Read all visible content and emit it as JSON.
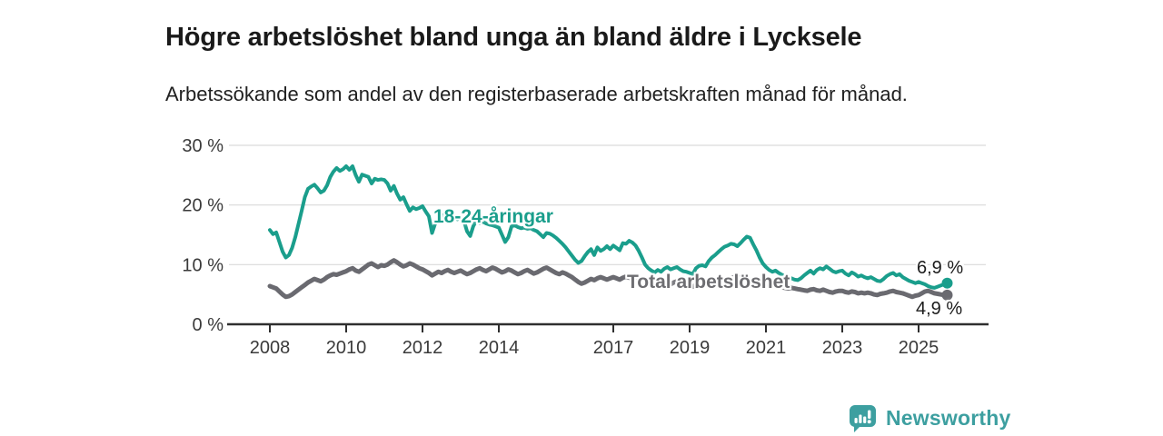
{
  "header": {
    "title": "Högre arbetslöshet bland unga än bland äldre i Lycksele",
    "subtitle": "Arbetssökande som andel av den registerbaserade arbetskraften månad för månad."
  },
  "colors": {
    "accent_teal": "#1a9e8c",
    "line_gray": "#6a6a70",
    "label_gray": "#6e6e72",
    "axis": "#2f2f2f",
    "axis_text": "#3a3a3a",
    "grid": "#d9d9d9",
    "title_text": "#1a1a1a",
    "brand_teal": "#3d9fa0"
  },
  "footer": {
    "brand": "Newsworthy",
    "brand_icon": "bar-chart-speech-bubble-icon"
  },
  "chart_data": {
    "type": "line",
    "title": "Högre arbetslöshet bland unga än bland äldre i Lycksele",
    "subtitle": "Arbetssökande som andel av den registerbaserade arbetskraften månad för månad.",
    "x_start_year": 2008,
    "x_step": "month",
    "x_end": "2025-10",
    "x_ticks": [
      2008,
      2010,
      2012,
      2014,
      2017,
      2019,
      2021,
      2023,
      2025
    ],
    "y_ticks": [
      {
        "value": 0,
        "label": "0 %"
      },
      {
        "value": 10,
        "label": "10 %"
      },
      {
        "value": 20,
        "label": "20 %"
      },
      {
        "value": 30,
        "label": "30 %"
      }
    ],
    "ylim": [
      0,
      31
    ],
    "grid": "horizontal",
    "legend_position": "inline-labels",
    "series": [
      {
        "name": "18-24-åringar",
        "color": "#1a9e8c",
        "end_label": "6,9 %",
        "end_value": 6.9,
        "values": [
          15.8,
          15.1,
          15.4,
          13.8,
          12.2,
          11.2,
          11.6,
          12.8,
          14.6,
          16.8,
          19.0,
          21.3,
          22.7,
          23.1,
          23.4,
          22.8,
          22.1,
          22.4,
          23.3,
          24.7,
          25.6,
          26.2,
          25.7,
          26.0,
          26.5,
          25.9,
          26.5,
          25.0,
          23.9,
          25.1,
          24.9,
          24.7,
          23.6,
          24.4,
          24.2,
          24.3,
          24.2,
          23.6,
          22.4,
          23.2,
          21.9,
          20.9,
          21.3,
          20.1,
          19.0,
          19.6,
          19.3,
          19.5,
          19.8,
          18.9,
          18.1,
          15.3,
          16.9,
          17.8,
          18.2,
          18.4,
          18.0,
          17.7,
          18.2,
          17.6,
          18.0,
          17.4,
          15.6,
          14.8,
          16.5,
          17.4,
          17.0,
          17.2,
          16.9,
          16.7,
          16.6,
          16.4,
          16.2,
          15.0,
          13.8,
          14.6,
          16.4,
          16.6,
          16.3,
          16.1,
          16.2,
          16.0,
          16.1,
          15.8,
          15.6,
          15.1,
          14.6,
          15.3,
          15.2,
          14.9,
          14.5,
          14.0,
          13.5,
          12.9,
          12.2,
          11.5,
          10.8,
          10.3,
          10.6,
          11.4,
          12.1,
          12.6,
          11.6,
          12.9,
          12.3,
          12.6,
          13.1,
          12.6,
          13.2,
          12.8,
          12.4,
          13.6,
          13.5,
          14.0,
          13.7,
          13.2,
          12.3,
          11.2,
          10.0,
          9.4,
          9.0,
          8.7,
          9.1,
          8.8,
          9.3,
          9.6,
          9.2,
          9.4,
          9.6,
          9.2,
          8.9,
          8.8,
          8.6,
          8.4,
          9.4,
          9.8,
          9.9,
          9.7,
          10.6,
          11.2,
          11.6,
          12.1,
          12.6,
          13.0,
          13.2,
          13.5,
          13.4,
          13.1,
          13.6,
          14.2,
          14.7,
          14.5,
          13.4,
          12.4,
          11.2,
          10.2,
          9.6,
          9.1,
          8.8,
          9.0,
          8.6,
          8.3,
          8.1,
          7.9,
          7.7,
          7.5,
          7.4,
          7.7,
          8.2,
          8.6,
          9.0,
          8.5,
          9.1,
          9.4,
          9.2,
          9.7,
          9.3,
          8.9,
          8.7,
          8.9,
          9.0,
          8.5,
          8.2,
          8.7,
          8.4,
          8.0,
          8.2,
          7.9,
          7.7,
          7.9,
          7.6,
          7.3,
          7.2,
          7.6,
          8.1,
          8.4,
          8.6,
          8.2,
          8.4,
          7.9,
          7.6,
          7.3,
          7.1,
          6.9,
          7.1,
          6.9,
          6.7,
          6.4,
          6.2,
          6.1,
          6.3,
          6.5,
          6.7,
          6.9
        ]
      },
      {
        "name": "Total arbetslöshet",
        "color": "#6a6a70",
        "end_label": "4,9 %",
        "end_value": 4.9,
        "values": [
          6.4,
          6.2,
          6.0,
          5.5,
          5.0,
          4.6,
          4.7,
          5.0,
          5.4,
          5.8,
          6.2,
          6.6,
          7.0,
          7.3,
          7.6,
          7.4,
          7.2,
          7.5,
          7.9,
          8.2,
          8.4,
          8.3,
          8.5,
          8.7,
          8.9,
          9.2,
          9.4,
          9.0,
          8.8,
          9.2,
          9.6,
          10.0,
          10.2,
          9.9,
          9.6,
          9.9,
          9.8,
          10.0,
          10.4,
          10.7,
          10.4,
          10.0,
          9.7,
          9.9,
          10.2,
          10.0,
          9.7,
          9.4,
          9.2,
          8.9,
          8.6,
          8.2,
          8.5,
          8.8,
          8.6,
          8.9,
          9.1,
          8.8,
          8.6,
          8.8,
          9.0,
          8.7,
          8.4,
          8.6,
          8.9,
          9.2,
          9.4,
          9.1,
          8.9,
          9.2,
          9.5,
          9.3,
          9.0,
          8.7,
          8.9,
          9.2,
          9.0,
          8.7,
          8.4,
          8.6,
          8.9,
          9.1,
          8.8,
          8.5,
          8.7,
          9.0,
          9.3,
          9.5,
          9.2,
          8.9,
          8.6,
          8.4,
          8.7,
          8.5,
          8.2,
          7.9,
          7.5,
          7.1,
          6.8,
          7.0,
          7.3,
          7.6,
          7.4,
          7.7,
          7.9,
          7.7,
          7.5,
          7.7,
          7.9,
          7.7,
          7.5,
          7.8,
          8.0,
          7.8,
          7.6,
          7.9,
          7.7,
          7.5,
          7.3,
          7.1,
          7.0,
          6.8,
          7.1,
          7.3,
          7.1,
          6.9,
          6.7,
          7.0,
          7.2,
          7.0,
          6.8,
          6.6,
          6.5,
          6.3,
          6.6,
          6.8,
          6.6,
          6.4,
          6.7,
          6.9,
          7.1,
          7.0,
          7.2,
          7.4,
          7.5,
          7.7,
          7.9,
          8.0,
          7.8,
          7.9,
          7.7,
          7.5,
          7.4,
          7.2,
          7.0,
          6.9,
          6.8,
          6.6,
          6.5,
          6.4,
          6.3,
          6.2,
          6.1,
          6.0,
          6.1,
          6.0,
          5.9,
          5.8,
          5.7,
          5.6,
          5.8,
          5.9,
          5.7,
          5.6,
          5.8,
          5.6,
          5.4,
          5.3,
          5.5,
          5.6,
          5.6,
          5.4,
          5.3,
          5.5,
          5.4,
          5.2,
          5.3,
          5.2,
          5.3,
          5.2,
          5.0,
          4.9,
          5.1,
          5.2,
          5.3,
          5.5,
          5.6,
          5.4,
          5.3,
          5.2,
          5.0,
          4.8,
          4.6,
          4.8,
          4.9,
          5.2,
          5.5,
          5.6,
          5.4,
          5.2,
          5.1,
          5.0,
          4.9,
          4.9
        ]
      }
    ]
  }
}
